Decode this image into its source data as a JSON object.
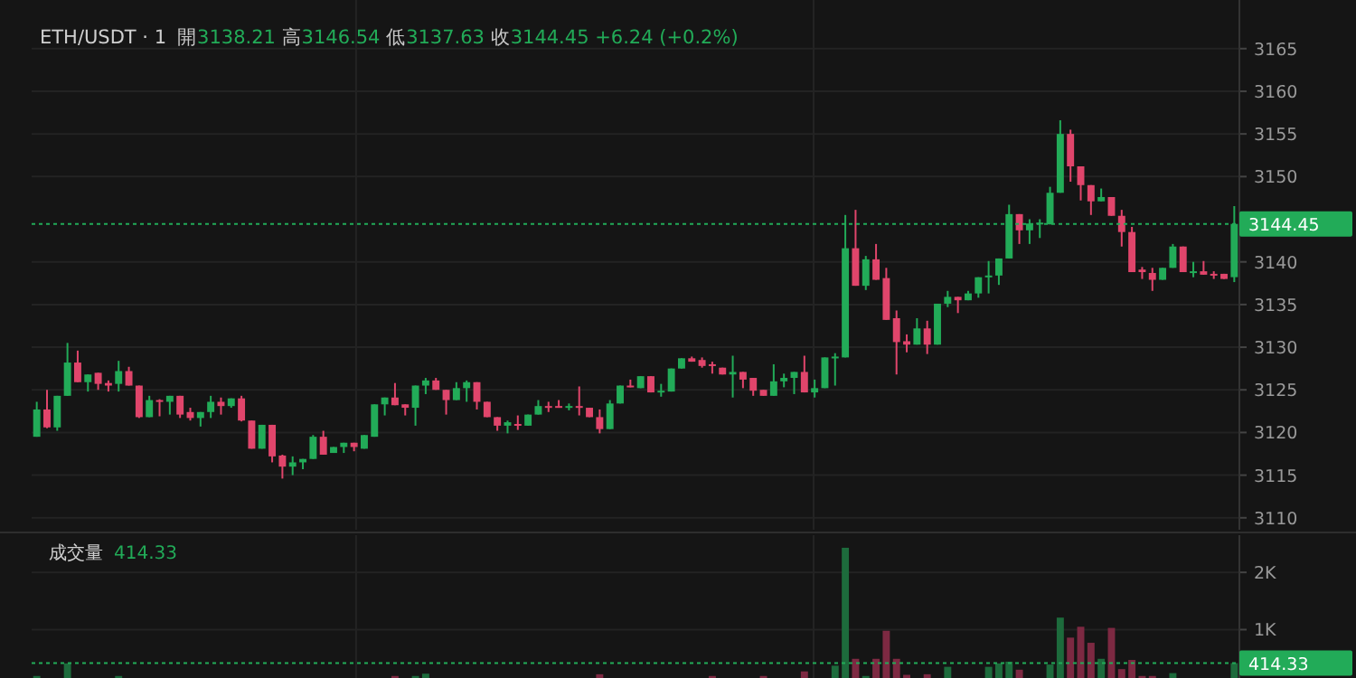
{
  "chart_data": [
    {
      "type": "candlestick",
      "title": "ETH/USDT · 1",
      "subtitle": "開3138.21 高3146.54 低3137.63 收3144.45 +6.24 (+0.2%)",
      "tick_labels": "y",
      "grid": true,
      "categories": [
        null,
        null,
        null,
        null,
        null,
        null,
        null,
        null,
        null,
        null,
        null,
        null,
        null,
        null,
        null,
        null,
        null,
        null,
        null,
        null,
        null,
        null,
        null,
        null,
        null,
        null,
        null,
        null,
        null,
        null,
        null,
        null,
        null,
        null,
        null,
        null,
        null,
        null,
        null,
        null,
        null,
        null,
        null,
        null,
        null,
        null,
        null,
        null,
        null,
        null,
        null,
        null,
        null,
        null,
        null,
        null,
        null,
        null,
        null,
        null,
        null,
        null,
        null,
        null,
        null,
        null,
        null,
        null,
        null,
        null,
        null,
        null,
        null,
        null,
        null,
        null,
        null,
        null,
        null,
        null,
        null,
        null,
        null,
        null,
        null,
        null,
        null,
        null,
        null,
        null,
        null,
        null,
        null,
        null,
        null,
        null,
        null,
        null,
        null,
        null,
        null,
        null,
        null,
        null,
        null,
        null,
        null,
        null,
        null,
        null,
        null,
        null,
        null,
        null,
        null,
        null,
        null,
        null
      ],
      "ohlc": [
        [
          3119.5,
          3123.6,
          3119.5,
          3122.7
        ],
        [
          3122.7,
          3125.0,
          3120.5,
          3120.6
        ],
        [
          3120.6,
          3124.3,
          3120.2,
          3124.3
        ],
        [
          3124.3,
          3130.5,
          3124.3,
          3128.2
        ],
        [
          3128.2,
          3129.6,
          3125.9,
          3125.9
        ],
        [
          3125.9,
          3126.8,
          3124.8,
          3126.8
        ],
        [
          3127.0,
          3127.0,
          3125.0,
          3125.7
        ],
        [
          3125.8,
          3126.1,
          3124.8,
          3125.5
        ],
        [
          3125.7,
          3128.4,
          3124.8,
          3127.2
        ],
        [
          3127.2,
          3127.7,
          3125.5,
          3125.5
        ],
        [
          3125.5,
          3125.5,
          3121.7,
          3121.8
        ],
        [
          3121.8,
          3124.3,
          3121.8,
          3123.8
        ],
        [
          3123.8,
          3123.9,
          3121.9,
          3123.6
        ],
        [
          3123.6,
          3124.3,
          3122.1,
          3124.3
        ],
        [
          3124.3,
          3124.3,
          3121.7,
          3122.1
        ],
        [
          3122.4,
          3122.9,
          3121.4,
          3121.7
        ],
        [
          3121.7,
          3122.4,
          3120.7,
          3122.4
        ],
        [
          3122.4,
          3124.3,
          3121.7,
          3123.6
        ],
        [
          3123.6,
          3124.1,
          3122.1,
          3123.1
        ],
        [
          3123.1,
          3124.0,
          3122.9,
          3124.0
        ],
        [
          3124.0,
          3124.3,
          3121.3,
          3121.4
        ],
        [
          3121.4,
          3121.4,
          3118.1,
          3118.1
        ],
        [
          3118.1,
          3120.9,
          3118.1,
          3120.9
        ],
        [
          3120.9,
          3120.9,
          3116.5,
          3117.2
        ],
        [
          3117.3,
          3117.4,
          3114.6,
          3116.0
        ],
        [
          3116.0,
          3117.2,
          3115.0,
          3116.5
        ],
        [
          3116.5,
          3116.9,
          3115.7,
          3116.9
        ],
        [
          3116.9,
          3119.7,
          3116.9,
          3119.5
        ],
        [
          3119.5,
          3120.2,
          3117.4,
          3117.4
        ],
        [
          3117.6,
          3118.3,
          3117.6,
          3118.3
        ],
        [
          3118.3,
          3118.8,
          3117.6,
          3118.8
        ],
        [
          3118.8,
          3118.8,
          3117.8,
          3118.3
        ],
        [
          3118.1,
          3119.7,
          3118.1,
          3119.7
        ],
        [
          3119.5,
          3123.3,
          3119.5,
          3123.3
        ],
        [
          3123.3,
          3124.1,
          3122.0,
          3124.1
        ],
        [
          3124.1,
          3125.8,
          3123.2,
          3123.2
        ],
        [
          3123.3,
          3123.3,
          3122.0,
          3122.9
        ],
        [
          3122.9,
          3125.5,
          3120.8,
          3125.5
        ],
        [
          3125.5,
          3126.4,
          3124.5,
          3126.1
        ],
        [
          3126.1,
          3126.4,
          3125.0,
          3125.0
        ],
        [
          3125.0,
          3125.0,
          3122.1,
          3123.8
        ],
        [
          3123.8,
          3125.9,
          3123.8,
          3125.2
        ],
        [
          3125.2,
          3126.1,
          3123.6,
          3125.9
        ],
        [
          3125.9,
          3125.9,
          3122.7,
          3123.6
        ],
        [
          3123.6,
          3123.6,
          3121.8,
          3121.8
        ],
        [
          3121.8,
          3121.8,
          3120.2,
          3120.8
        ],
        [
          3120.8,
          3121.4,
          3119.9,
          3121.2
        ],
        [
          3121.0,
          3122.0,
          3120.3,
          3120.8
        ],
        [
          3120.8,
          3122.1,
          3120.8,
          3122.1
        ],
        [
          3122.1,
          3123.8,
          3122.1,
          3123.1
        ],
        [
          3123.1,
          3123.6,
          3122.4,
          3122.9
        ],
        [
          3123.1,
          3123.8,
          3122.9,
          3122.9
        ],
        [
          3122.9,
          3123.4,
          3122.6,
          3123.1
        ],
        [
          3123.1,
          3125.4,
          3122.0,
          3122.9
        ],
        [
          3122.9,
          3122.9,
          3121.8,
          3121.8
        ],
        [
          3121.8,
          3122.7,
          3119.9,
          3120.4
        ],
        [
          3120.4,
          3123.8,
          3120.4,
          3123.4
        ],
        [
          3123.4,
          3125.5,
          3123.4,
          3125.5
        ],
        [
          3125.5,
          3126.2,
          3125.3,
          3125.3
        ],
        [
          3125.2,
          3126.6,
          3125.2,
          3126.6
        ],
        [
          3126.6,
          3126.6,
          3124.7,
          3124.7
        ],
        [
          3124.8,
          3125.7,
          3124.2,
          3124.9
        ],
        [
          3124.8,
          3127.5,
          3124.8,
          3127.5
        ],
        [
          3127.5,
          3128.7,
          3127.5,
          3128.7
        ],
        [
          3128.7,
          3128.9,
          3128.3,
          3128.3
        ],
        [
          3128.5,
          3128.8,
          3127.6,
          3127.8
        ],
        [
          3128.0,
          3128.3,
          3126.9,
          3127.8
        ],
        [
          3127.6,
          3127.6,
          3126.8,
          3126.8
        ],
        [
          3126.8,
          3129.0,
          3124.1,
          3127.1
        ],
        [
          3127.1,
          3127.1,
          3125.2,
          3126.2
        ],
        [
          3126.4,
          3126.4,
          3124.3,
          3124.9
        ],
        [
          3125.0,
          3125.0,
          3124.3,
          3124.3
        ],
        [
          3124.3,
          3128.0,
          3124.3,
          3126.0
        ],
        [
          3126.0,
          3126.9,
          3125.3,
          3126.4
        ],
        [
          3126.4,
          3127.1,
          3124.5,
          3127.1
        ],
        [
          3127.1,
          3129.0,
          3124.7,
          3124.7
        ],
        [
          3124.7,
          3126.2,
          3124.1,
          3125.2
        ],
        [
          3125.2,
          3128.8,
          3125.2,
          3128.8
        ],
        [
          3128.8,
          3129.3,
          3125.5,
          3128.9
        ],
        [
          3128.8,
          3145.5,
          3128.8,
          3141.6
        ],
        [
          3141.6,
          3146.1,
          3137.2,
          3137.2
        ],
        [
          3137.2,
          3140.7,
          3136.7,
          3140.3
        ],
        [
          3140.3,
          3142.1,
          3137.9,
          3137.9
        ],
        [
          3138.1,
          3139.3,
          3133.2,
          3133.2
        ],
        [
          3133.4,
          3134.3,
          3126.8,
          3130.6
        ],
        [
          3130.7,
          3131.5,
          3129.4,
          3130.3
        ],
        [
          3130.3,
          3133.4,
          3130.3,
          3132.2
        ],
        [
          3132.2,
          3133.1,
          3129.2,
          3130.3
        ],
        [
          3130.3,
          3135.1,
          3130.3,
          3135.1
        ],
        [
          3135.1,
          3136.6,
          3134.7,
          3135.9
        ],
        [
          3135.9,
          3135.9,
          3134.0,
          3135.5
        ],
        [
          3135.5,
          3136.6,
          3135.5,
          3136.3
        ],
        [
          3136.3,
          3138.2,
          3135.8,
          3138.2
        ],
        [
          3138.3,
          3140.1,
          3136.3,
          3138.4
        ],
        [
          3138.4,
          3140.4,
          3137.3,
          3140.4
        ],
        [
          3140.4,
          3146.7,
          3140.4,
          3145.6
        ],
        [
          3145.6,
          3145.6,
          3142.1,
          3143.7
        ],
        [
          3143.7,
          3145.0,
          3142.1,
          3144.5
        ],
        [
          3144.4,
          3145.0,
          3142.8,
          3144.6
        ],
        [
          3144.4,
          3148.8,
          3144.4,
          3148.1
        ],
        [
          3148.1,
          3156.6,
          3148.1,
          3155.0
        ],
        [
          3155.0,
          3155.5,
          3149.4,
          3151.2
        ],
        [
          3151.2,
          3151.2,
          3147.2,
          3149.0
        ],
        [
          3149.0,
          3149.0,
          3145.5,
          3147.1
        ],
        [
          3147.1,
          3148.6,
          3147.1,
          3147.6
        ],
        [
          3147.6,
          3147.6,
          3145.4,
          3145.4
        ],
        [
          3145.4,
          3146.1,
          3141.8,
          3143.5
        ],
        [
          3143.5,
          3144.1,
          3138.8,
          3138.8
        ],
        [
          3139.1,
          3139.4,
          3138.0,
          3138.8
        ],
        [
          3138.7,
          3139.3,
          3136.6,
          3137.9
        ],
        [
          3137.9,
          3139.3,
          3137.9,
          3139.3
        ],
        [
          3139.3,
          3142.1,
          3139.3,
          3141.8
        ],
        [
          3141.8,
          3141.8,
          3138.8,
          3138.8
        ],
        [
          3138.8,
          3140.0,
          3138.2,
          3138.9
        ],
        [
          3138.9,
          3140.1,
          3138.5,
          3138.5
        ],
        [
          3138.6,
          3138.9,
          3138.0,
          3138.5
        ],
        [
          3138.6,
          3138.6,
          3138.0,
          3138.0
        ],
        [
          3138.21,
          3146.54,
          3137.63,
          3144.45
        ]
      ],
      "colors": [
        "#22ab58",
        "#e0456b",
        "#22ab58",
        "#22ab58",
        "#e0456b",
        "#22ab58",
        "#e0456b",
        "#e0456b",
        "#22ab58",
        "#e0456b",
        "#e0456b",
        "#22ab58",
        "#e0456b",
        "#22ab58",
        "#e0456b",
        "#e0456b",
        "#22ab58",
        "#22ab58",
        "#e0456b",
        "#22ab58",
        "#e0456b",
        "#e0456b",
        "#22ab58",
        "#e0456b",
        "#e0456b",
        "#22ab58",
        "#22ab58",
        "#22ab58",
        "#e0456b",
        "#22ab58",
        "#22ab58",
        "#e0456b",
        "#22ab58",
        "#22ab58",
        "#22ab58",
        "#e0456b",
        "#e0456b",
        "#22ab58",
        "#22ab58",
        "#e0456b",
        "#e0456b",
        "#22ab58",
        "#22ab58",
        "#e0456b",
        "#e0456b",
        "#e0456b",
        "#22ab58",
        "#e0456b",
        "#22ab58",
        "#22ab58",
        "#e0456b",
        "#e0456b",
        "#22ab58",
        "#e0456b",
        "#e0456b",
        "#e0456b",
        "#22ab58",
        "#22ab58",
        "#e0456b",
        "#22ab58",
        "#e0456b",
        "#22ab58",
        "#22ab58",
        "#22ab58",
        "#e0456b",
        "#e0456b",
        "#e0456b",
        "#e0456b",
        "#22ab58",
        "#e0456b",
        "#e0456b",
        "#e0456b",
        "#22ab58",
        "#22ab58",
        "#22ab58",
        "#e0456b",
        "#22ab58",
        "#22ab58",
        "#22ab58",
        "#22ab58",
        "#e0456b",
        "#22ab58",
        "#e0456b",
        "#e0456b",
        "#e0456b",
        "#e0456b",
        "#22ab58",
        "#e0456b",
        "#22ab58",
        "#22ab58",
        "#e0456b",
        "#22ab58",
        "#22ab58",
        "#22ab58",
        "#22ab58",
        "#22ab58",
        "#e0456b",
        "#22ab58",
        "#22ab58",
        "#22ab58",
        "#22ab58",
        "#e0456b",
        "#e0456b",
        "#e0456b",
        "#22ab58",
        "#e0456b",
        "#e0456b",
        "#e0456b",
        "#e0456b",
        "#e0456b",
        "#22ab58",
        "#22ab58",
        "#e0456b",
        "#22ab58",
        "#e0456b",
        "#e0456b",
        "#e0456b",
        "#22ab58"
      ],
      "ylim": [
        3108.6,
        3170.7
      ],
      "yticks": [
        3110,
        3115,
        3120,
        3125,
        3130,
        3135,
        3140,
        3150,
        3155,
        3160,
        3165
      ],
      "ref_lines": [
        {
          "axis": "y",
          "value": 3144.45,
          "label": "3144.45",
          "color": "#22ab58",
          "line_style": "dotted"
        }
      ]
    },
    {
      "type": "bar",
      "title": "成交量",
      "subtitle": "414.33",
      "tick_labels": "y",
      "grid": true,
      "categories": [
        null,
        null,
        null,
        null,
        null,
        null,
        null,
        null,
        null,
        null,
        null,
        null,
        null,
        null,
        null,
        null,
        null,
        null,
        null,
        null,
        null,
        null,
        null,
        null,
        null,
        null,
        null,
        null,
        null,
        null,
        null,
        null,
        null,
        null,
        null,
        null,
        null,
        null,
        null,
        null,
        null,
        null,
        null,
        null,
        null,
        null,
        null,
        null,
        null,
        null,
        null,
        null,
        null,
        null,
        null,
        null,
        null,
        null,
        null,
        null,
        null,
        null,
        null,
        null,
        null,
        null,
        null,
        null,
        null,
        null,
        null,
        null,
        null,
        null,
        null,
        null,
        null,
        null,
        null,
        null,
        null,
        null,
        null,
        null,
        null,
        null,
        null,
        null,
        null,
        null,
        null,
        null,
        null,
        null,
        null,
        null,
        null,
        null,
        null,
        null,
        null,
        null,
        null,
        null,
        null,
        null,
        null,
        null,
        null,
        null,
        null,
        null,
        null,
        null,
        null,
        null,
        null,
        null
      ],
      "values": [
        190,
        null,
        null,
        410,
        null,
        null,
        null,
        null,
        190,
        null,
        null,
        null,
        null,
        null,
        null,
        null,
        null,
        null,
        null,
        null,
        null,
        null,
        null,
        null,
        null,
        null,
        null,
        null,
        null,
        null,
        null,
        null,
        null,
        null,
        null,
        190,
        null,
        190,
        230,
        null,
        null,
        null,
        null,
        null,
        null,
        null,
        null,
        null,
        null,
        null,
        null,
        null,
        null,
        null,
        null,
        220,
        null,
        null,
        null,
        null,
        null,
        null,
        null,
        null,
        null,
        null,
        190,
        null,
        null,
        null,
        null,
        190,
        null,
        null,
        null,
        270,
        null,
        null,
        370,
        2430,
        490,
        190,
        490,
        980,
        490,
        210,
        null,
        220,
        null,
        350,
        null,
        null,
        null,
        350,
        410,
        440,
        300,
        null,
        null,
        390,
        1210,
        860,
        1050,
        770,
        490,
        1030,
        310,
        470,
        190,
        190,
        null,
        240,
        null,
        null,
        null,
        null,
        null,
        414.33
      ],
      "colors": [
        "#1d6b3c",
        null,
        null,
        "#1d6b3c",
        null,
        null,
        null,
        null,
        "#1d6b3c",
        null,
        null,
        null,
        null,
        null,
        null,
        null,
        null,
        null,
        null,
        null,
        null,
        null,
        null,
        null,
        null,
        null,
        null,
        null,
        null,
        null,
        null,
        null,
        null,
        null,
        null,
        "#7d2942",
        null,
        "#1d6b3c",
        "#1d6b3c",
        null,
        null,
        null,
        null,
        null,
        null,
        null,
        null,
        null,
        null,
        null,
        null,
        null,
        null,
        null,
        null,
        "#7d2942",
        null,
        null,
        null,
        null,
        null,
        null,
        null,
        null,
        null,
        null,
        "#7d2942",
        null,
        null,
        null,
        null,
        "#7d2942",
        null,
        null,
        null,
        "#7d2942",
        null,
        null,
        "#1d6b3c",
        "#1d6b3c",
        "#7d2942",
        "#1d6b3c",
        "#7d2942",
        "#7d2942",
        "#7d2942",
        "#7d2942",
        null,
        "#7d2942",
        null,
        "#1d6b3c",
        null,
        null,
        null,
        "#1d6b3c",
        "#1d6b3c",
        "#1d6b3c",
        "#7d2942",
        null,
        null,
        "#1d6b3c",
        "#1d6b3c",
        "#7d2942",
        "#7d2942",
        "#7d2942",
        "#1d6b3c",
        "#7d2942",
        "#7d2942",
        "#7d2942",
        "#7d2942",
        "#7d2942",
        null,
        "#1d6b3c",
        null,
        null,
        null,
        null,
        null,
        "#1d6b3c"
      ],
      "ylim": [
        0,
        2650
      ],
      "yticks": [
        {
          "value": 1000,
          "label": "1K"
        },
        {
          "value": 2000,
          "label": "2K"
        }
      ],
      "ref_lines": [
        {
          "axis": "y",
          "value": 414.33,
          "label": "414.33",
          "color": "#22ab58",
          "line_style": "dotted"
        }
      ]
    }
  ]
}
